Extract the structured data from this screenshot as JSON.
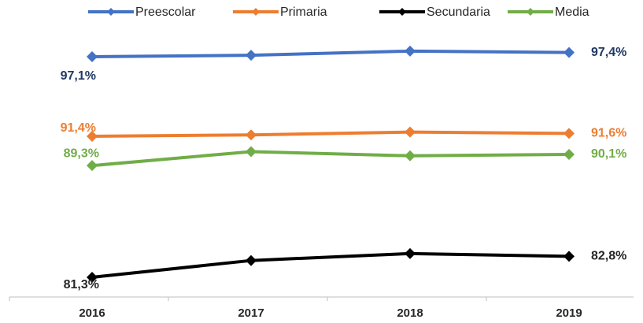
{
  "chart_data": {
    "type": "line",
    "categories": [
      "2016",
      "2017",
      "2018",
      "2019"
    ],
    "ylim": [
      80,
      98
    ],
    "legend": "top",
    "series": [
      {
        "name": "Preescolar",
        "color": "#4472c4",
        "label_color": "#1f3864",
        "values": [
          97.1,
          97.2,
          97.5,
          97.4
        ],
        "value_labels": [
          "97,1%",
          null,
          null,
          "97,4%"
        ]
      },
      {
        "name": "Primaria",
        "color": "#ed7d31",
        "label_color": "#ed7d31",
        "values": [
          91.4,
          91.5,
          91.7,
          91.6
        ],
        "value_labels": [
          "91,4%",
          null,
          null,
          "91,6%"
        ]
      },
      {
        "name": "Secundaria",
        "color": "#000000",
        "label_color": "#262626",
        "values": [
          81.3,
          82.5,
          83.0,
          82.8
        ],
        "value_labels": [
          "81,3%",
          null,
          null,
          "82,8%"
        ]
      },
      {
        "name": "Media",
        "color": "#70ad47",
        "label_color": "#70ad47",
        "values": [
          89.3,
          90.3,
          90.0,
          90.1
        ],
        "value_labels": [
          "89,3%",
          null,
          null,
          "90,1%"
        ]
      }
    ]
  }
}
